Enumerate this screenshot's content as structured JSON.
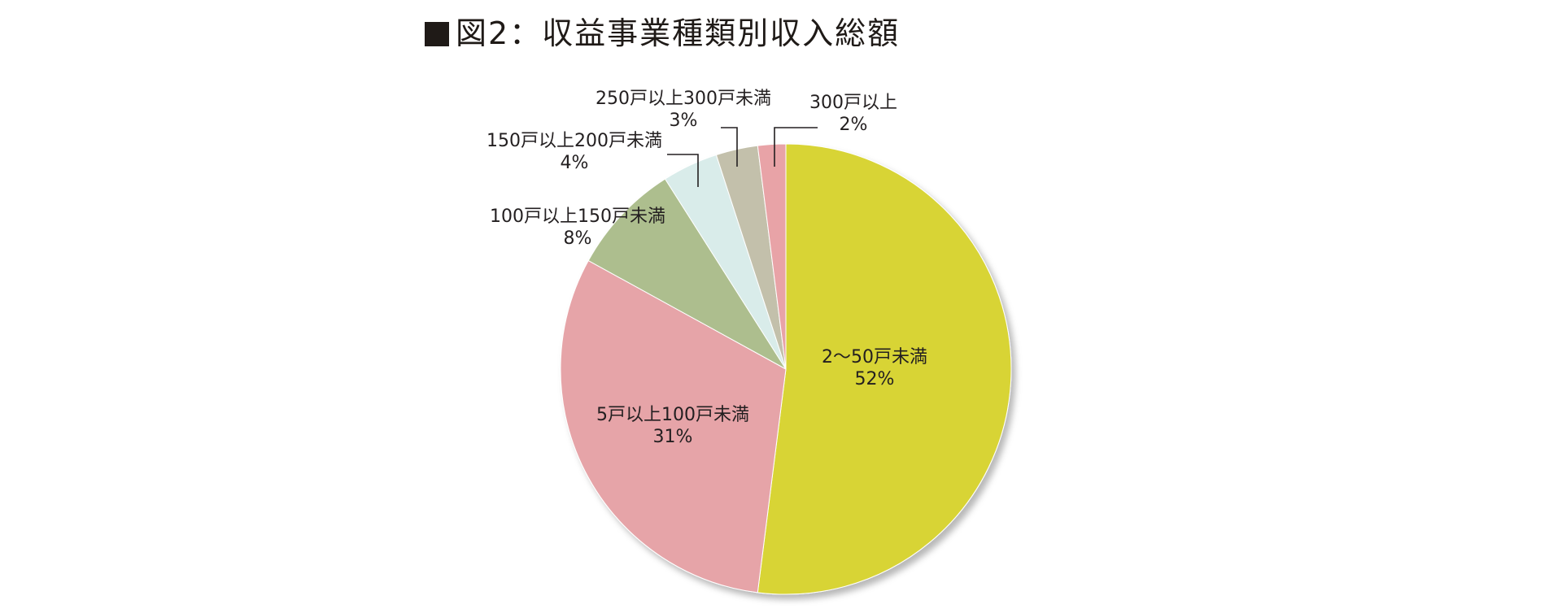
{
  "chart_data": {
    "type": "pie",
    "title": "図2：収益事業種類別収入総額",
    "start_angle": "12 o'clock, clockwise",
    "slices": [
      {
        "label": "2〜50戸未満",
        "value": 52,
        "value_label": "52%",
        "color": "#d8d435"
      },
      {
        "label": "5戸以上100戸未満",
        "value": 31,
        "value_label": "31%",
        "color": "#e6a4a8"
      },
      {
        "label": "100戸以上150戸未満",
        "value": 8,
        "value_label": "8%",
        "color": "#adbe8e"
      },
      {
        "label": "150戸以上200戸未満",
        "value": 4,
        "value_label": "4%",
        "color": "#d9ecea"
      },
      {
        "label": "250戸以上300戸未満",
        "value": 3,
        "value_label": "3%",
        "color": "#c3c0ab"
      },
      {
        "label": "300戸以上",
        "value": 2,
        "value_label": "2%",
        "color": "#e8a3a7"
      }
    ]
  }
}
